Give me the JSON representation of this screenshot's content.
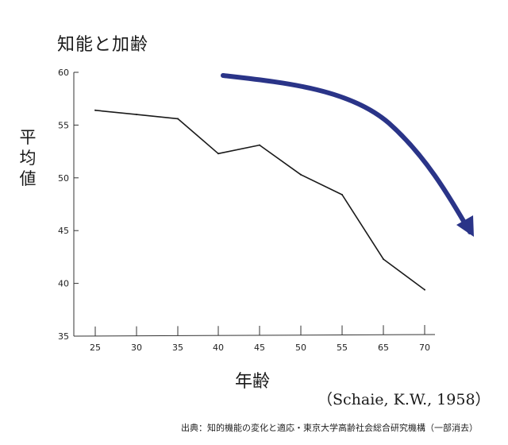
{
  "chart_data": {
    "type": "line",
    "title": "知能と加齢",
    "ylabel": "平均値",
    "xlabel": "年齢",
    "categories": [
      "25",
      "30",
      "35",
      "40",
      "45",
      "50",
      "55",
      "65",
      "70"
    ],
    "series": [
      {
        "values": [
          56.4,
          56.0,
          55.6,
          52.3,
          53.1,
          50.3,
          48.4,
          42.3,
          39.4
        ]
      }
    ],
    "ylim": [
      35,
      60
    ],
    "yticks": [
      "60",
      "55",
      "50",
      "45",
      "40",
      "35"
    ],
    "grid": false,
    "annotations": {
      "trend_arrow": "downward curved arrow"
    },
    "colors": {
      "line": "#1a1a1a",
      "arrow": "#2a3488"
    },
    "citation": "（Schaie, K.W., 1958）",
    "source": "出典：知的機能の変化と適応・東京大学高齢社会総合研究機構（一部消去）"
  }
}
